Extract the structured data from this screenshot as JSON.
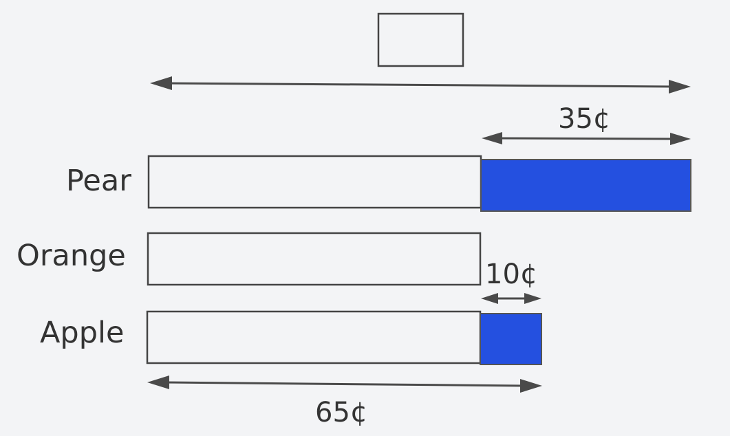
{
  "diagram": {
    "labels": {
      "pear": "Pear",
      "orange": "Orange",
      "apple": "Apple"
    },
    "amounts": {
      "pear_extra": "35¢",
      "apple_extra": "10¢",
      "apple_total": "65¢"
    },
    "unknown_total_box": "",
    "colors": {
      "shaded": "#2450e0",
      "outline": "#444444",
      "background": "#f3f4f6"
    }
  }
}
